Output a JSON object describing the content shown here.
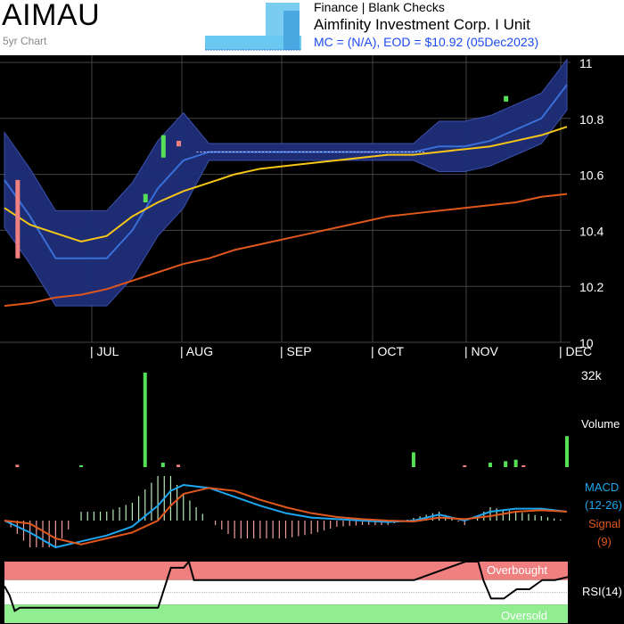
{
  "header": {
    "ticker": "AIMAU",
    "subtitle": "5yr Chart",
    "sector": "Finance | Blank Checks",
    "company": "Aimfinity Investment Corp. I Unit",
    "mc_eod": "MC = (N/A), EOD = $10.92 (05Dec2023)"
  },
  "colors": {
    "background": "#000000",
    "grid": "#444444",
    "band": "#1f2f7a",
    "price_line": "#3a6fd8",
    "ma_short": "#f5c518",
    "ma_long": "#e0571d",
    "up_bar": "#55e055",
    "down_bar": "#f08080",
    "macd": "#1ea7f0",
    "signal": "#e0571d",
    "overbought": "#f08080",
    "oversold": "#90ee90"
  },
  "chart_data": [
    {
      "type": "line",
      "title": "",
      "x_labels": [
        "| JUL",
        "| AUG",
        "| SEP",
        "| OCT",
        "| NOV",
        "| DEC"
      ],
      "y_ticks": [
        "11",
        "10.8",
        "10.6",
        "10.4",
        "10.2",
        "10"
      ],
      "ylim": [
        10.0,
        11.0
      ],
      "grid": true,
      "x": [
        0,
        10,
        20,
        30,
        40,
        50,
        60,
        70,
        80,
        90,
        100,
        110,
        120,
        130,
        140,
        150,
        160,
        170,
        180,
        190,
        200,
        210,
        220
      ],
      "series": [
        {
          "role": "price",
          "values": [
            10.58,
            10.45,
            10.3,
            10.3,
            10.3,
            10.4,
            10.55,
            10.65,
            10.68,
            10.68,
            10.68,
            10.68,
            10.68,
            10.68,
            10.68,
            10.68,
            10.68,
            10.7,
            10.7,
            10.72,
            10.76,
            10.8,
            10.92
          ]
        },
        {
          "role": "ma_short",
          "values": [
            10.48,
            10.42,
            10.39,
            10.36,
            10.38,
            10.45,
            10.5,
            10.54,
            10.57,
            10.6,
            10.62,
            10.63,
            10.64,
            10.65,
            10.66,
            10.67,
            10.67,
            10.68,
            10.69,
            10.7,
            10.72,
            10.74,
            10.77
          ]
        },
        {
          "role": "ma_long",
          "values": [
            10.13,
            10.14,
            10.16,
            10.17,
            10.19,
            10.22,
            10.25,
            10.28,
            10.3,
            10.33,
            10.35,
            10.37,
            10.39,
            10.41,
            10.43,
            10.45,
            10.46,
            10.47,
            10.48,
            10.49,
            10.5,
            10.52,
            10.53
          ]
        }
      ],
      "daily_bars": [
        {
          "x": 5,
          "open": 10.58,
          "close": 10.3,
          "down": true
        },
        {
          "x": 55,
          "open": 10.53,
          "close": 10.5,
          "down": false
        },
        {
          "x": 62,
          "open": 10.66,
          "close": 10.74,
          "down": false
        },
        {
          "x": 68,
          "open": 10.72,
          "close": 10.7,
          "down": true
        },
        {
          "x": 196,
          "open": 10.86,
          "close": 10.88,
          "down": false
        }
      ]
    },
    {
      "type": "bar",
      "title": "Volume",
      "ymax_label": "32k",
      "ymax": 32000,
      "x": [
        5,
        30,
        55,
        62,
        68,
        160,
        180,
        190,
        196,
        200,
        203,
        220
      ],
      "values": [
        800,
        300,
        32000,
        1500,
        800,
        5000,
        500,
        1500,
        2000,
        2500,
        400,
        10500
      ],
      "up": [
        false,
        true,
        true,
        true,
        false,
        true,
        false,
        true,
        true,
        true,
        false,
        true
      ]
    },
    {
      "type": "line",
      "title": "MACD",
      "labels": {
        "macd": "MACD",
        "macd_params": "(12-26)",
        "signal": "Signal",
        "signal_params": "(9)"
      },
      "x": [
        0,
        10,
        20,
        30,
        40,
        50,
        60,
        65,
        70,
        80,
        90,
        100,
        110,
        120,
        130,
        140,
        150,
        160,
        170,
        180,
        190,
        200,
        210,
        220
      ],
      "series": [
        {
          "role": "macd",
          "values": [
            0.0,
            -0.04,
            -0.09,
            -0.07,
            -0.05,
            -0.02,
            0.05,
            0.1,
            0.12,
            0.11,
            0.08,
            0.05,
            0.025,
            0.01,
            0.005,
            0.0,
            -0.005,
            0.0,
            0.02,
            0.0,
            0.03,
            0.04,
            0.04,
            0.03
          ]
        },
        {
          "role": "signal",
          "values": [
            0.0,
            -0.01,
            -0.06,
            -0.08,
            -0.06,
            -0.04,
            0.0,
            0.05,
            0.09,
            0.11,
            0.1,
            0.07,
            0.045,
            0.025,
            0.012,
            0.005,
            0.0,
            -0.003,
            0.01,
            0.005,
            0.015,
            0.03,
            0.035,
            0.03
          ]
        }
      ],
      "ylim": [
        -0.1,
        0.15
      ]
    },
    {
      "type": "line",
      "title": "RSI(14)",
      "labels": {
        "rsi": "RSI(14)",
        "overbought": "Overbought",
        "oversold": "Oversold"
      },
      "x": [
        0,
        2,
        4,
        6,
        30,
        35,
        60,
        65,
        70,
        72,
        74,
        90,
        100,
        130,
        160,
        180,
        185,
        187,
        190,
        195,
        200,
        205,
        210,
        215,
        220
      ],
      "values": [
        60,
        45,
        20,
        25,
        25,
        25,
        25,
        90,
        90,
        100,
        70,
        70,
        70,
        70,
        70,
        100,
        100,
        70,
        40,
        40,
        55,
        55,
        70,
        70,
        75
      ],
      "ylim": [
        0,
        100
      ],
      "overbought": 70,
      "oversold": 30
    }
  ]
}
